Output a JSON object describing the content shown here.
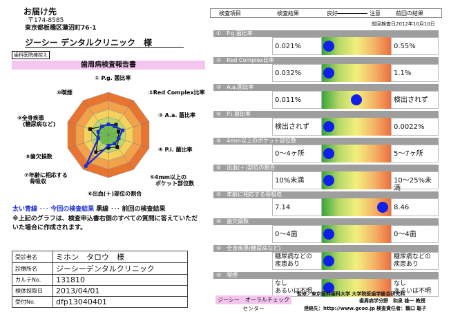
{
  "address": {
    "label": "お届け先",
    "postal": "〒174-8585",
    "street": "東京都板橋区蓮沼町76-1",
    "recipient": "ジーシー デンタルクリニック　様"
  },
  "dental_tag": "歯科医院様控え",
  "report_title": "歯周病検査報告書",
  "radar": {
    "labels": [
      "① P.g. 菌比率",
      "②Red Complex比率",
      "③ A.a. 菌比率",
      "④ P.i. 菌比率",
      "⑤4mm以上の\nポケット部位数",
      "⑥出血(＋)部位の割合",
      "⑦年齢に相応する\n骨吸収",
      "⑧歯欠損数",
      "⑨全身疾患\n(糖尿病など)",
      "⑩喫煙"
    ],
    "current": [
      0.25,
      0.25,
      0.35,
      0.25,
      0.25,
      0.25,
      0.9,
      0.25,
      0.25,
      0.25
    ],
    "previous": [
      0.25,
      0.3,
      0.25,
      0.25,
      0.35,
      0.3,
      0.5,
      0.25,
      0.45,
      0.25
    ]
  },
  "legend": {
    "thick_line": "太い青線",
    "current_label": "今回の検査結果",
    "black_line": "黒線",
    "previous_label": "前回の検査結果",
    "note": "※上記のグラフは、検査申込書右側のすべての質問に答えていただいた場合に作成されます。"
  },
  "patient_info": [
    {
      "label": "受診者名",
      "value": "ミホン　タロウ　様"
    },
    {
      "label": "診療所名",
      "value": "ジーシーデンタルクリニック"
    },
    {
      "label": "カルテNo.",
      "value": "131810"
    },
    {
      "label": "検体採取日",
      "value": "2013/04/01"
    },
    {
      "label": "受付No.",
      "value": "dfp13040401"
    }
  ],
  "table_header": {
    "item": "検査項目",
    "result": "検査結果",
    "good": "良好",
    "caution": "注意",
    "previous": "前回の結果",
    "previous_date": "前回検査日2012年10月10日"
  },
  "rows": [
    {
      "head": "①　P.g.菌比率",
      "current": "0.021%",
      "previous": "0.55%",
      "level": 0.1
    },
    {
      "head": "②　Red Complex比率",
      "current": "0.032%",
      "previous": "1.1%",
      "level": 0.1
    },
    {
      "head": "③　A.a.菌比率",
      "current": "0.011%",
      "previous": "検出されず",
      "level": 0.5
    },
    {
      "head": "④　P.i.菌比率",
      "current": "検出されず",
      "previous": "0.0022%",
      "level": 0.1
    },
    {
      "head": "⑤　4mm以上のポケット部位数",
      "current": "0～4ヶ所",
      "previous": "5～7ヶ所",
      "level": 0.1
    },
    {
      "head": "⑥　出血(＋)部位の割合",
      "current": "10%未満",
      "previous": "10～25%未満",
      "level": 0.1
    },
    {
      "head": "⑦　年齢に相応する骨吸収",
      "current": "7.14",
      "previous": "8.46",
      "level": 0.88
    },
    {
      "head": "⑧　歯欠損数",
      "current": "0～4歯",
      "previous": "0～4歯",
      "level": 0.1
    },
    {
      "head": "⑨　全身疾患(糖尿病など)",
      "current": "糖尿病などの\n疾患あり",
      "previous": "糖尿病などの\n疾患あり",
      "level": 0.1
    },
    {
      "head": "⑩　喫煙",
      "current": "なし\nあるいは不明",
      "previous": "なし\nあるいは不明",
      "level": 0.1
    }
  ],
  "footer": {
    "center_name": "ジーシー　オーラルチェックセンター",
    "supervision": "監修／東京医科歯科大学 大学院医歯学総合研究科",
    "supervision2": "歯周病学分野　和泉 雄一 教授",
    "contact": "連絡先：http://www.gcoo.jp",
    "manager": "検査責任者：鶴口 聡子"
  }
}
